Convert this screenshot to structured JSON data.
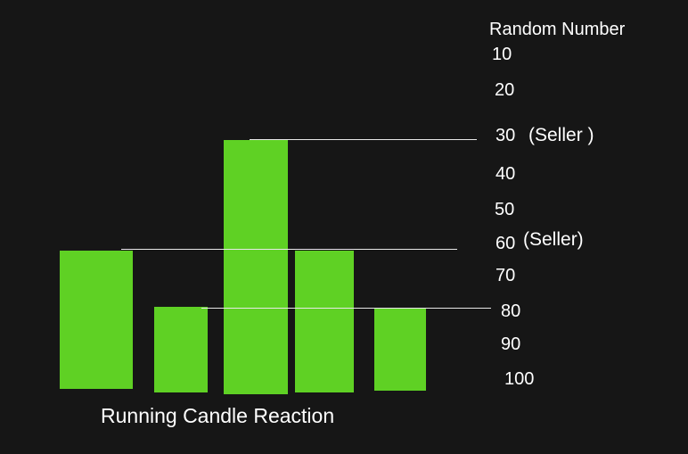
{
  "colors": {
    "background": "#161616",
    "bar": "#5fd124",
    "line": "#e8e8e8",
    "text": "#ffffff"
  },
  "scale": {
    "header": "Random Number",
    "ticks": [
      "10",
      "20",
      "30",
      "40",
      "50",
      "60",
      "70",
      "80",
      "90",
      "100"
    ]
  },
  "annotations": {
    "seller_30": "(Seller )",
    "seller_60": "(Seller)"
  },
  "bars": [
    {
      "level": "60"
    },
    {
      "level": "80"
    },
    {
      "level": "30"
    },
    {
      "level": "60"
    },
    {
      "level": "80"
    }
  ],
  "caption": "Running Candle Reaction"
}
